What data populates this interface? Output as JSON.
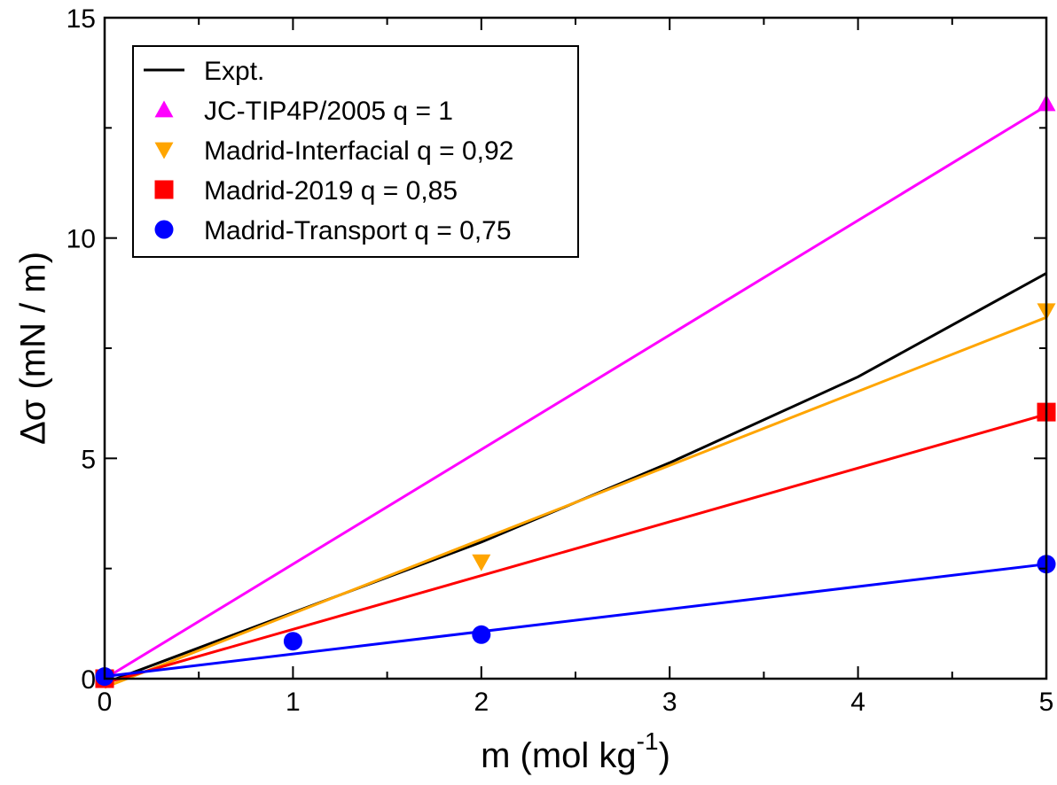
{
  "chart_data": {
    "type": "line",
    "xlabel": {
      "base": "m (mol kg",
      "sup": "-1",
      "tail": ")"
    },
    "ylabel": "Δσ (mN / m)",
    "xlim": [
      0,
      5
    ],
    "ylim": [
      0,
      15
    ],
    "x_ticks": [
      "0",
      "1",
      "2",
      "3",
      "4",
      "5"
    ],
    "y_ticks": [
      "0",
      "5",
      "10",
      "15"
    ],
    "x_tick_values": [
      0,
      1,
      2,
      3,
      4,
      5
    ],
    "y_tick_values": [
      0,
      5,
      10,
      15
    ],
    "x_minor_step": 0.5,
    "y_minor_step": 2.5,
    "grid": false,
    "legend_position": "top-left",
    "series": [
      {
        "name": "Expt.",
        "color": "#000000",
        "marker": "none",
        "line": [
          [
            0,
            -0.1
          ],
          [
            0.5,
            0.7
          ],
          [
            1,
            1.5
          ],
          [
            2,
            3.1
          ],
          [
            3,
            4.9
          ],
          [
            4,
            6.85
          ],
          [
            5,
            9.2
          ]
        ],
        "points": []
      },
      {
        "name": "JC-TIP4P/2005 q = 1",
        "color": "#ff00ff",
        "marker": "triangle-up",
        "line": [
          [
            0,
            0
          ],
          [
            5,
            13.0
          ]
        ],
        "points": [
          [
            5,
            13.05
          ]
        ]
      },
      {
        "name": "Madrid-Interfacial q = 0,92",
        "color": "#ffa500",
        "marker": "triangle-down",
        "line": [
          [
            0,
            -0.2
          ],
          [
            5,
            8.2
          ]
        ],
        "points": [
          [
            2,
            2.65
          ],
          [
            5,
            8.35
          ]
        ]
      },
      {
        "name": "Madrid-2019 q = 0,85",
        "color": "#ff0000",
        "marker": "square",
        "line": [
          [
            0,
            -0.1
          ],
          [
            5,
            6.0
          ]
        ],
        "points": [
          [
            0,
            0
          ],
          [
            5,
            6.05
          ]
        ]
      },
      {
        "name": "Madrid-Transport q = 0,75",
        "color": "#0000ff",
        "marker": "circle",
        "line": [
          [
            0,
            0.05
          ],
          [
            5,
            2.6
          ]
        ],
        "points": [
          [
            0,
            0.05
          ],
          [
            1,
            0.85
          ],
          [
            2,
            1.0
          ],
          [
            5,
            2.6
          ]
        ]
      }
    ]
  }
}
